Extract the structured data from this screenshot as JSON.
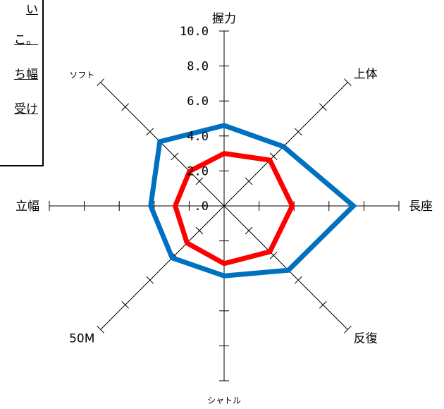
{
  "note": {
    "lines": [
      "い",
      "こ。",
      "ち幅",
      "受け"
    ]
  },
  "chart_data": {
    "type": "radar",
    "axes": [
      "握力",
      "上体",
      "長座",
      "反復",
      "シャトル",
      "50M",
      "立幅",
      "ソフト"
    ],
    "tick_labels": [
      "10.0",
      "8.0",
      "6.0",
      "4.0",
      "2.0",
      ".0"
    ],
    "range": [
      0,
      10
    ],
    "grid": false,
    "series": [
      {
        "values": [
          4.6,
          4.8,
          7.4,
          5.2,
          4.0,
          4.2,
          4.2,
          5.2
        ],
        "color": "#0070c0"
      },
      {
        "values": [
          3.0,
          3.7,
          3.9,
          3.7,
          3.3,
          3.0,
          2.8,
          2.8
        ],
        "color": "#ff0000"
      }
    ]
  }
}
